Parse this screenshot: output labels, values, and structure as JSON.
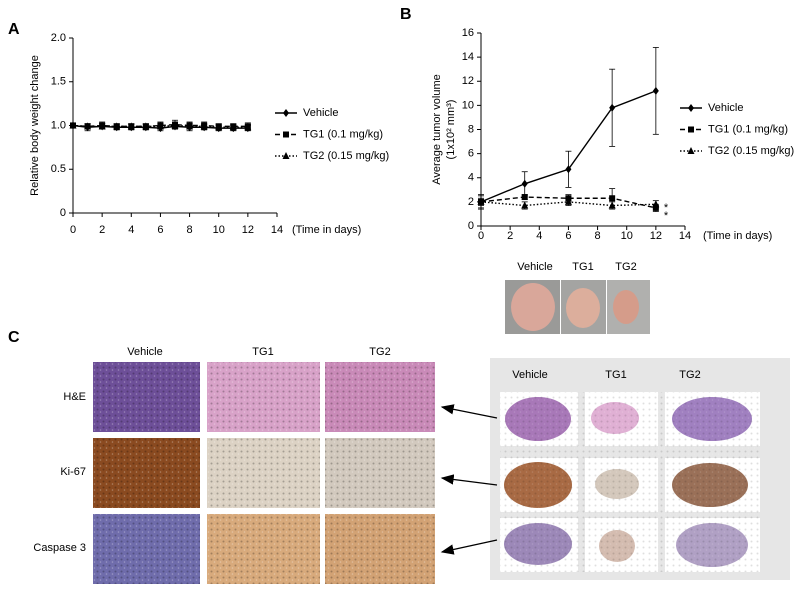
{
  "chart_data": [
    {
      "type": "line",
      "ylabel": "Relative body weight change",
      "xlabel": "(Time in days)",
      "x": [
        0,
        1,
        2,
        3,
        4,
        5,
        6,
        7,
        8,
        9,
        10,
        11,
        12
      ],
      "series": [
        {
          "name": "Vehicle",
          "color": "#000000",
          "dash": "solid",
          "marker": "diamond",
          "values": [
            1.0,
            0.98,
            0.99,
            0.98,
            0.98,
            0.98,
            0.97,
            0.99,
            0.98,
            0.98,
            0.97,
            0.97,
            0.97
          ],
          "errors": [
            0.03,
            0.04,
            0.03,
            0.03,
            0.03,
            0.03,
            0.03,
            0.03,
            0.04,
            0.03,
            0.03,
            0.03,
            0.03
          ]
        },
        {
          "name": "TG1 (0.1 mg/kg)",
          "color": "#000000",
          "dash": "dashed",
          "marker": "square",
          "values": [
            1.0,
            0.99,
            1.0,
            0.99,
            0.99,
            0.99,
            1.0,
            1.01,
            1.0,
            1.0,
            0.99,
            0.99,
            0.99
          ],
          "errors": [
            0.03,
            0.03,
            0.04,
            0.03,
            0.03,
            0.03,
            0.04,
            0.05,
            0.04,
            0.04,
            0.03,
            0.03,
            0.04
          ]
        },
        {
          "name": "TG2 (0.15 mg/kg)",
          "color": "#000000",
          "dash": "dotted",
          "marker": "triangle",
          "values": [
            1.0,
            0.99,
            0.99,
            0.99,
            0.99,
            0.99,
            0.99,
            1.0,
            0.99,
            0.99,
            0.98,
            0.98,
            0.98
          ],
          "errors": [
            0.03,
            0.03,
            0.03,
            0.03,
            0.03,
            0.03,
            0.03,
            0.04,
            0.03,
            0.03,
            0.03,
            0.03,
            0.03
          ]
        }
      ],
      "xlim": [
        0,
        14
      ],
      "xticks": [
        0,
        2,
        4,
        6,
        8,
        10,
        12,
        14
      ],
      "ylim": [
        0,
        2
      ],
      "yticks": [
        0,
        0.5,
        {
          "value": 1,
          "label": "1.0"
        },
        1.5,
        {
          "value": 2,
          "label": "2.0"
        }
      ],
      "grid": false,
      "legend": "right"
    },
    {
      "type": "line",
      "ylabel": [
        "Average tumor volume",
        "(1x10² mm³)"
      ],
      "xlabel": "(Time in days)",
      "x": [
        0,
        3,
        6,
        9,
        12
      ],
      "series": [
        {
          "name": "Vehicle",
          "color": "#000000",
          "dash": "solid",
          "marker": "diamond",
          "values": [
            2.0,
            3.5,
            4.7,
            9.8,
            11.2
          ],
          "errors": [
            0.5,
            1.0,
            1.5,
            3.2,
            3.6
          ]
        },
        {
          "name": "TG1 (0.1 mg/kg)",
          "color": "#000000",
          "dash": "dashed",
          "marker": "square",
          "values": [
            2.0,
            2.4,
            2.3,
            2.3,
            1.5
          ],
          "errors": [
            0.3,
            0.2,
            0.3,
            0.8,
            0.3
          ]
        },
        {
          "name": "TG2 (0.15 mg/kg)",
          "color": "#000000",
          "dash": "dotted",
          "marker": "triangle",
          "values": [
            2.0,
            1.7,
            2.0,
            1.7,
            1.8
          ],
          "errors": [
            0.6,
            0.3,
            0.3,
            0.3,
            0.3
          ]
        }
      ],
      "annotations": [
        {
          "text": "*"
        },
        {
          "text": "*"
        }
      ],
      "xlim": [
        0,
        14
      ],
      "xticks": [
        0,
        2,
        4,
        6,
        8,
        10,
        12,
        14
      ],
      "ylim": [
        0,
        16
      ],
      "yticks": [
        0,
        2,
        4,
        6,
        8,
        10,
        12,
        14,
        16
      ],
      "grid": false,
      "legend": "right"
    }
  ],
  "panels": {
    "letters": [
      "A",
      "B",
      "C"
    ],
    "photo_labels": [
      "Vehicle",
      "TG1",
      "TG2"
    ],
    "histology": {
      "columns": [
        "Vehicle",
        "TG1",
        "TG2"
      ],
      "rows": [
        "H&E",
        "Ki-67",
        "Caspase 3"
      ]
    },
    "whole_slide_columns": [
      "Vehicle",
      "TG1",
      "TG2"
    ]
  }
}
